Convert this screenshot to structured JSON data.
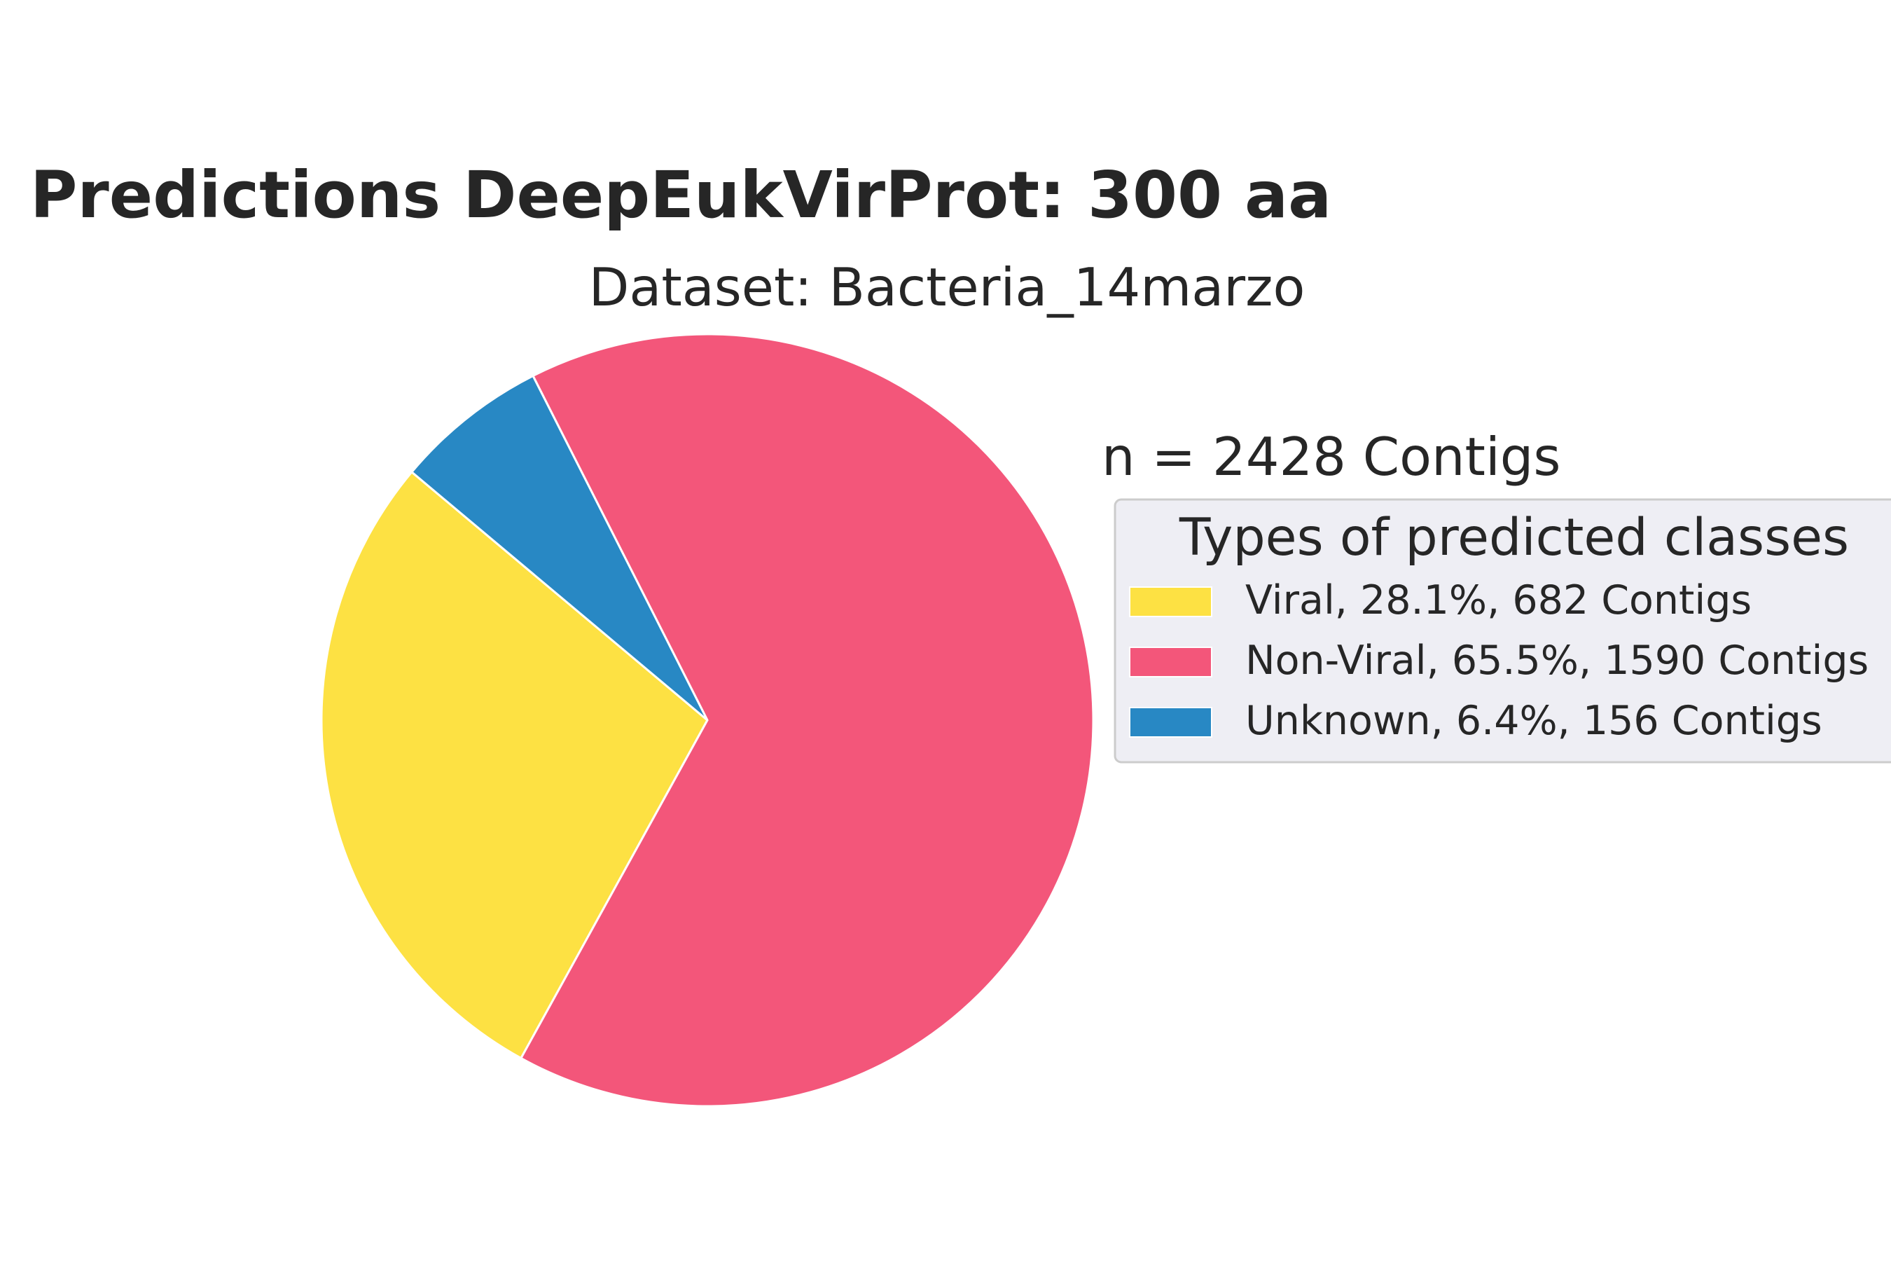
{
  "chart_data": {
    "type": "pie",
    "title": "Predictions DeepEukVirProt: 300 aa",
    "subtitle": "Dataset: Bacteria_14marzo",
    "annotation": "n = 2428 Contigs",
    "legend_title": "Types of predicted classes",
    "legend_placement": "right",
    "start_angle_deg": 140,
    "direction": "counterclockwise",
    "slices": [
      {
        "label": "Viral, 28.1%, 682 Contigs",
        "category": "Viral",
        "value": 682,
        "percent": 28.1,
        "color": "#FDE143"
      },
      {
        "label": "Non-Viral, 65.5%, 1590 Contigs",
        "category": "Non-Viral",
        "value": 1590,
        "percent": 65.5,
        "color": "#F3567A"
      },
      {
        "label": "Unknown, 6.4%, 156 Contigs",
        "category": "Unknown",
        "value": 156,
        "percent": 6.4,
        "color": "#2888C4"
      }
    ]
  },
  "colors": {
    "text": "#262626",
    "slice_edge": "#ffffff",
    "legend_background": "#EEEEF4",
    "legend_border": "#CCCCCC"
  }
}
